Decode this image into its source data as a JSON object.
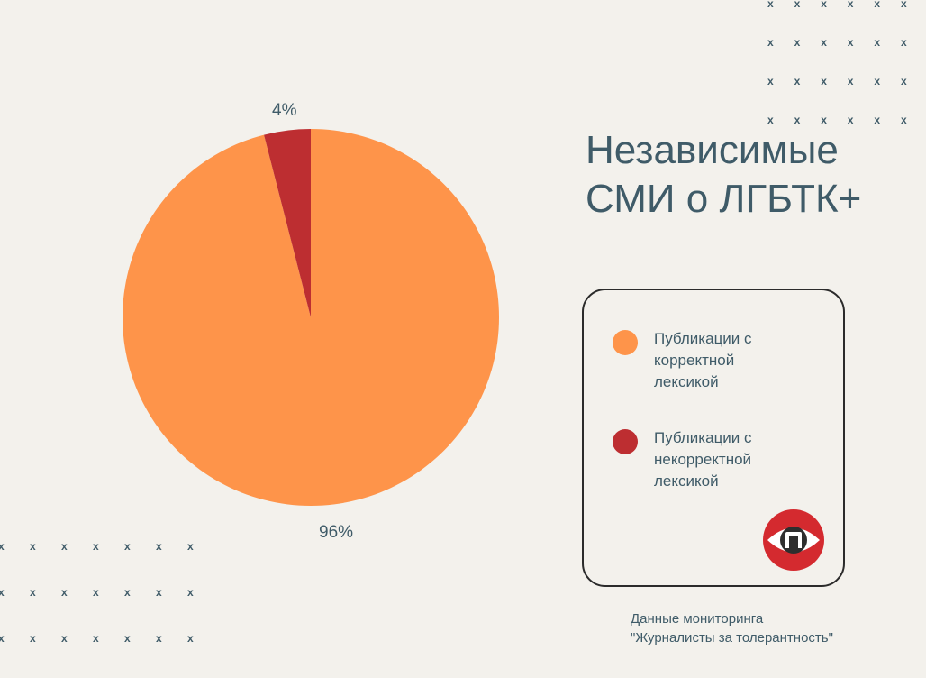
{
  "title": "Независимые СМИ о ЛГБТК+",
  "chart_data": {
    "type": "pie",
    "slices": [
      {
        "label": "Публикации с корректной лексикой",
        "value": 96,
        "display": "96%",
        "color": "#fe944a"
      },
      {
        "label": "Публикации с некорректной лексикой",
        "value": 4,
        "display": "4%",
        "color": "#bd2e31"
      }
    ],
    "legend_placement": "right"
  },
  "legend": {
    "items": [
      {
        "label": "Публикации с корректной лексикой",
        "color": "#fe944a"
      },
      {
        "label": "Публикации с некорректной лексикой",
        "color": "#bd2e31"
      }
    ]
  },
  "logo": {
    "icon": "eye-icon",
    "letter": "п"
  },
  "decoration": {
    "mark": "x"
  },
  "source": {
    "line1": "Данные мониторинга",
    "line2": "\"Журналисты за толерантность\""
  }
}
